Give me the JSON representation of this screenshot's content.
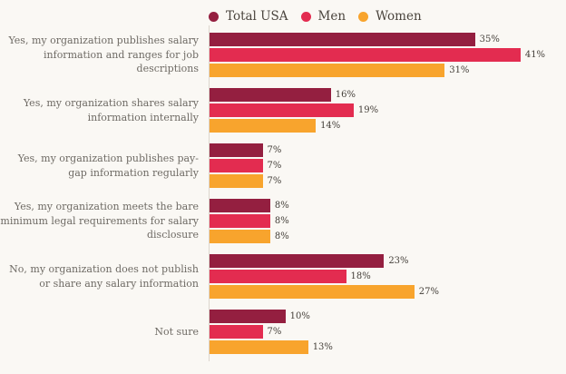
{
  "background_color": "#FAF8F4",
  "axis_line_color": "#DCD6CE",
  "label_text_color": "#6E6A64",
  "value_text_color": "#45403A",
  "legend_text_color": "#4B453E",
  "chart_data": {
    "type": "bar",
    "orientation": "horizontal",
    "title": "",
    "xlabel": "",
    "ylabel": "",
    "grid": false,
    "legend_position": "top",
    "xlim": [
      0,
      47
    ],
    "value_suffix": "%",
    "categories": [
      "Yes, my organization publishes salary information and ranges for job descriptions",
      "Yes, my organization shares salary information internally",
      "Yes, my organization publishes pay-gap information regularly",
      "Yes, my organization meets the bare minimum legal requirements for salary disclosure",
      "No, my organization does not publish or share any salary information",
      "Not sure"
    ],
    "series": [
      {
        "name": "Total USA",
        "color": "#941F40",
        "values": [
          35,
          16,
          7,
          8,
          23,
          10
        ]
      },
      {
        "name": "Men",
        "color": "#E32C50",
        "values": [
          41,
          19,
          7,
          8,
          18,
          7
        ]
      },
      {
        "name": "Women",
        "color": "#F8A42D",
        "values": [
          31,
          14,
          7,
          8,
          27,
          13
        ]
      }
    ]
  }
}
